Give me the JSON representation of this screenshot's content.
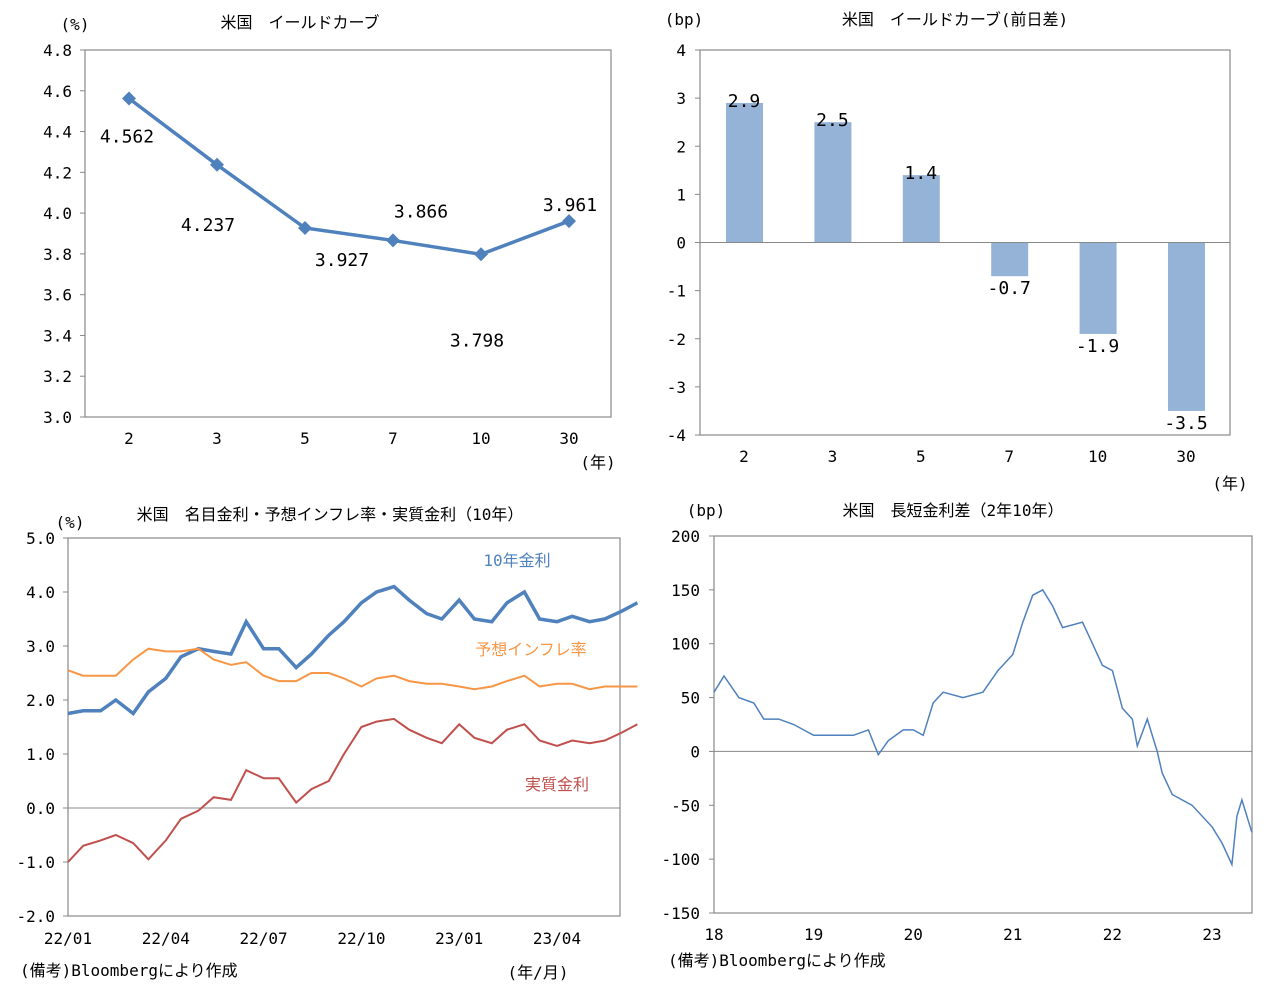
{
  "chart_data": [
    {
      "type": "line",
      "title": "米国　イールドカーブ",
      "ylabel": "(%)",
      "xlabel": "(年)",
      "categories": [
        "2",
        "3",
        "5",
        "7",
        "10",
        "30"
      ],
      "values": [
        4.562,
        4.237,
        3.927,
        3.866,
        3.798,
        3.961
      ],
      "data_labels": [
        "4.562",
        "4.237",
        "3.927",
        "3.866",
        "3.798",
        "3.961"
      ],
      "ylim": [
        3.0,
        4.8
      ],
      "yticks": [
        "3.0",
        "3.2",
        "3.4",
        "3.6",
        "3.8",
        "4.0",
        "4.2",
        "4.4",
        "4.6",
        "4.8"
      ],
      "marker": "diamond",
      "color": "#4F81BD",
      "grid": false
    },
    {
      "type": "bar",
      "title": "米国　イールドカーブ(前日差)",
      "ylabel": "(bp)",
      "xlabel": "(年)",
      "categories": [
        "2",
        "3",
        "5",
        "7",
        "10",
        "30"
      ],
      "values": [
        2.9,
        2.5,
        1.4,
        -0.7,
        -1.9,
        -3.5
      ],
      "data_labels": [
        "2.9",
        "2.5",
        "1.4",
        "-0.7",
        "-1.9",
        "-3.5"
      ],
      "ylim": [
        -4,
        4
      ],
      "yticks": [
        "-4",
        "-3",
        "-2",
        "-1",
        "0",
        "1",
        "2",
        "3",
        "4"
      ],
      "color": "#95B3D7",
      "grid": false
    },
    {
      "type": "line",
      "title": "米国　名目金利・予想インフレ率・実質金利（10年）",
      "ylabel": "(%)",
      "xlabel": "(年/月)",
      "note": "(備考)Bloombergにより作成",
      "xticks": [
        "22/01",
        "22/04",
        "22/07",
        "22/10",
        "23/01",
        "23/04"
      ],
      "x": [
        "22/01/01",
        "22/01/15",
        "22/02/01",
        "22/02/15",
        "22/03/01",
        "22/03/15",
        "22/04/01",
        "22/04/15",
        "22/05/01",
        "22/05/15",
        "22/06/01",
        "22/06/15",
        "22/07/01",
        "22/07/15",
        "22/08/01",
        "22/08/15",
        "22/09/01",
        "22/09/15",
        "22/10/01",
        "22/10/15",
        "22/11/01",
        "22/11/15",
        "22/12/01",
        "22/12/15",
        "23/01/01",
        "23/01/15",
        "23/02/01",
        "23/02/15",
        "23/03/01",
        "23/03/15",
        "23/04/01",
        "23/04/15",
        "23/05/01",
        "23/05/15",
        "23/06/01",
        "23/06/15"
      ],
      "ylim": [
        -2.0,
        5.0
      ],
      "yticks": [
        "-2.0",
        "-1.0",
        "0.0",
        "1.0",
        "2.0",
        "3.0",
        "4.0",
        "5.0"
      ],
      "series": [
        {
          "name": "10年金利",
          "color": "#4F81BD",
          "values": [
            1.75,
            1.8,
            1.8,
            2.0,
            1.75,
            2.15,
            2.4,
            2.8,
            2.95,
            2.9,
            2.85,
            3.45,
            2.95,
            2.95,
            2.6,
            2.85,
            3.2,
            3.45,
            3.8,
            4.0,
            4.1,
            3.85,
            3.6,
            3.5,
            3.85,
            3.5,
            3.45,
            3.8,
            4.0,
            3.5,
            3.45,
            3.55,
            3.45,
            3.5,
            3.65,
            3.8
          ]
        },
        {
          "name": "予想インフレ率",
          "color": "#F79646",
          "values": [
            2.55,
            2.45,
            2.45,
            2.45,
            2.75,
            2.95,
            2.9,
            2.9,
            2.95,
            2.75,
            2.65,
            2.7,
            2.45,
            2.35,
            2.35,
            2.5,
            2.5,
            2.4,
            2.25,
            2.4,
            2.45,
            2.35,
            2.3,
            2.3,
            2.25,
            2.2,
            2.25,
            2.35,
            2.45,
            2.25,
            2.3,
            2.3,
            2.2,
            2.25,
            2.25,
            2.25
          ]
        },
        {
          "name": "実質金利",
          "color": "#C0504D",
          "values": [
            -1.0,
            -0.7,
            -0.6,
            -0.5,
            -0.65,
            -0.95,
            -0.6,
            -0.2,
            -0.05,
            0.2,
            0.15,
            0.7,
            0.55,
            0.55,
            0.1,
            0.35,
            0.5,
            1.0,
            1.5,
            1.6,
            1.65,
            1.45,
            1.3,
            1.2,
            1.55,
            1.3,
            1.2,
            1.45,
            1.55,
            1.25,
            1.15,
            1.25,
            1.2,
            1.25,
            1.4,
            1.55
          ]
        }
      ],
      "grid": false
    },
    {
      "type": "line",
      "title": "米国　長短金利差（2年10年）",
      "ylabel": "(bp)",
      "note": "(備考)Bloombergにより作成",
      "xticks": [
        "18",
        "19",
        "20",
        "21",
        "22",
        "23"
      ],
      "x": [
        2018.0,
        2018.1,
        2018.25,
        2018.4,
        2018.5,
        2018.65,
        2018.8,
        2019.0,
        2019.2,
        2019.4,
        2019.55,
        2019.65,
        2019.75,
        2019.9,
        2020.0,
        2020.1,
        2020.2,
        2020.3,
        2020.5,
        2020.7,
        2020.85,
        2021.0,
        2021.1,
        2021.2,
        2021.3,
        2021.4,
        2021.5,
        2021.7,
        2021.8,
        2021.9,
        2022.0,
        2022.1,
        2022.2,
        2022.25,
        2022.35,
        2022.45,
        2022.5,
        2022.6,
        2022.8,
        2023.0,
        2023.1,
        2023.2,
        2023.25,
        2023.3,
        2023.4
      ],
      "values": [
        55,
        70,
        50,
        45,
        30,
        30,
        25,
        15,
        15,
        15,
        20,
        -3,
        10,
        20,
        20,
        15,
        45,
        55,
        50,
        55,
        75,
        90,
        120,
        145,
        150,
        135,
        115,
        120,
        100,
        80,
        75,
        40,
        30,
        5,
        30,
        0,
        -20,
        -40,
        -50,
        -70,
        -85,
        -105,
        -60,
        -45,
        -75
      ],
      "ylim": [
        -150,
        200
      ],
      "yticks": [
        "-150",
        "-100",
        "-50",
        "0",
        "50",
        "100",
        "150",
        "200"
      ],
      "color": "#4F81BD",
      "grid": false
    }
  ]
}
